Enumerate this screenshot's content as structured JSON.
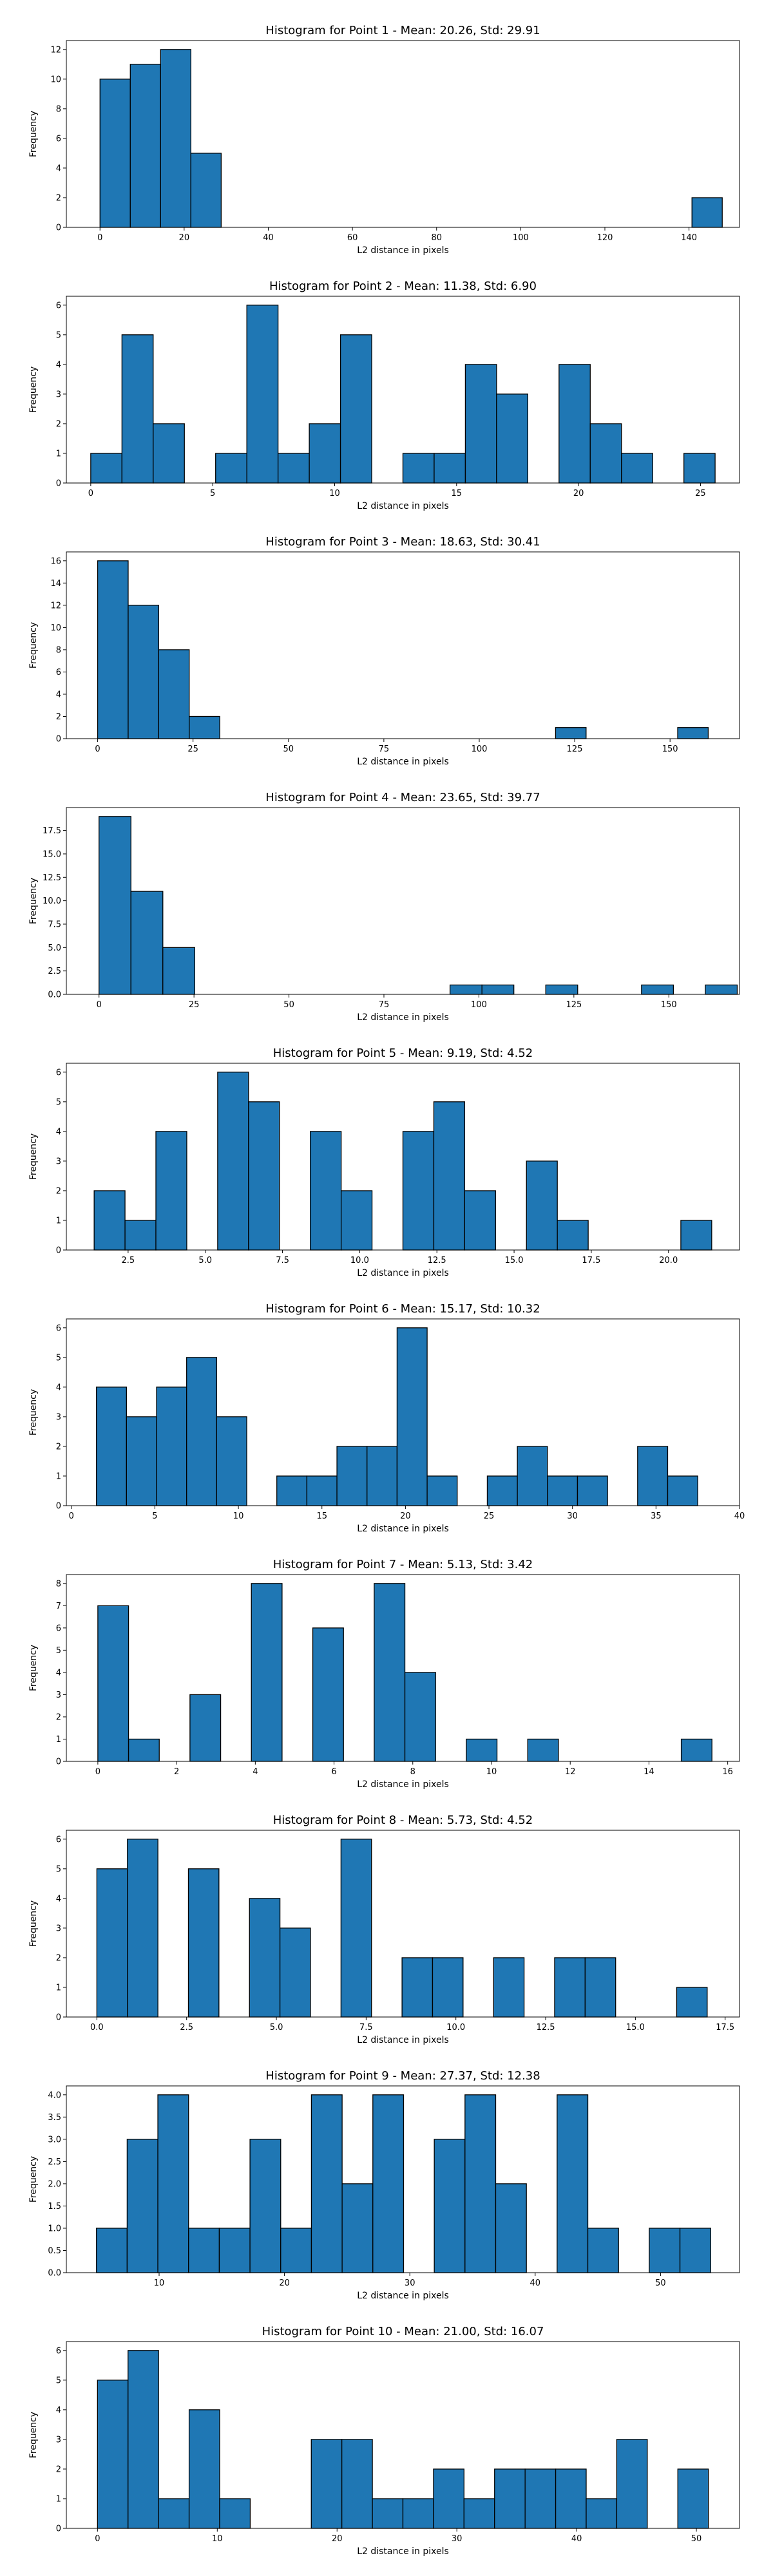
{
  "chart_data": [
    {
      "type": "bar",
      "title": "Histogram for Point 1 - Mean: 20.26, Std: 29.91",
      "xlabel": "L2 distance in pixels",
      "ylabel": "Frequency",
      "bar_color": "#1f77b4",
      "edge_color": "#000000",
      "xlim": [
        -8,
        152
      ],
      "ylim": [
        0,
        12.6
      ],
      "xticks": [
        0,
        20,
        40,
        60,
        80,
        100,
        120,
        140
      ],
      "xtick_labels": [
        "0",
        "20",
        "40",
        "60",
        "80",
        "100",
        "120",
        "140"
      ],
      "yticks": [
        0,
        2,
        4,
        6,
        8,
        10,
        12
      ],
      "ytick_labels": [
        "0",
        "2",
        "4",
        "6",
        "8",
        "10",
        "12"
      ],
      "bins": [
        [
          0.0,
          7.2,
          10
        ],
        [
          7.2,
          14.4,
          11
        ],
        [
          14.4,
          21.6,
          12
        ],
        [
          21.6,
          28.8,
          5
        ],
        [
          140.7,
          147.9,
          2
        ]
      ]
    },
    {
      "type": "bar",
      "title": "Histogram for Point 2 - Mean: 11.38, Std: 6.90",
      "xlabel": "L2 distance in pixels",
      "ylabel": "Frequency",
      "bar_color": "#1f77b4",
      "edge_color": "#000000",
      "xlim": [
        -1.0,
        26.6
      ],
      "ylim": [
        0,
        6.3
      ],
      "xticks": [
        0,
        5,
        10,
        15,
        20,
        25
      ],
      "xtick_labels": [
        "0",
        "5",
        "10",
        "15",
        "20",
        "25"
      ],
      "yticks": [
        0,
        1,
        2,
        3,
        4,
        5,
        6
      ],
      "ytick_labels": [
        "0",
        "1",
        "2",
        "3",
        "4",
        "5",
        "6"
      ],
      "bins": [
        [
          0.0,
          1.28,
          1
        ],
        [
          1.28,
          2.56,
          5
        ],
        [
          2.56,
          3.84,
          2
        ],
        [
          5.12,
          6.4,
          1
        ],
        [
          6.4,
          7.68,
          6
        ],
        [
          7.68,
          8.96,
          1
        ],
        [
          8.96,
          10.24,
          2
        ],
        [
          10.24,
          11.52,
          5
        ],
        [
          12.8,
          14.08,
          1
        ],
        [
          14.08,
          15.36,
          1
        ],
        [
          15.36,
          16.64,
          4
        ],
        [
          16.64,
          17.92,
          3
        ],
        [
          19.2,
          20.48,
          4
        ],
        [
          20.48,
          21.76,
          2
        ],
        [
          21.76,
          23.04,
          1
        ],
        [
          24.32,
          25.6,
          1
        ]
      ]
    },
    {
      "type": "bar",
      "title": "Histogram for Point 3 - Mean: 18.63, Std: 30.41",
      "xlabel": "L2 distance in pixels",
      "ylabel": "Frequency",
      "bar_color": "#1f77b4",
      "edge_color": "#000000",
      "xlim": [
        -8.2,
        168.2
      ],
      "ylim": [
        0,
        16.8
      ],
      "xticks": [
        0,
        25,
        50,
        75,
        100,
        125,
        150
      ],
      "xtick_labels": [
        "0",
        "25",
        "50",
        "75",
        "100",
        "125",
        "150"
      ],
      "yticks": [
        0,
        2,
        4,
        6,
        8,
        10,
        12,
        14,
        16
      ],
      "ytick_labels": [
        "0",
        "2",
        "4",
        "6",
        "8",
        "10",
        "12",
        "14",
        "16"
      ],
      "bins": [
        [
          0.0,
          8.0,
          16
        ],
        [
          8.0,
          16.0,
          12
        ],
        [
          16.0,
          24.0,
          8
        ],
        [
          24.0,
          32.0,
          2
        ],
        [
          120.0,
          128.0,
          1
        ],
        [
          152.0,
          160.0,
          1
        ]
      ]
    },
    {
      "type": "bar",
      "title": "Histogram for Point 4 - Mean: 23.65, Std: 39.77",
      "xlabel": "L2 distance in pixels",
      "ylabel": "Frequency",
      "bar_color": "#1f77b4",
      "edge_color": "#000000",
      "xlim": [
        -8.6,
        168.6
      ],
      "ylim": [
        0,
        19.95
      ],
      "xticks": [
        0,
        25,
        50,
        75,
        100,
        125,
        150
      ],
      "xtick_labels": [
        "0",
        "25",
        "50",
        "75",
        "100",
        "125",
        "150"
      ],
      "yticks": [
        0,
        2.5,
        5,
        7.5,
        10,
        12.5,
        15,
        17.5
      ],
      "ytick_labels": [
        "0.0",
        "2.5",
        "5.0",
        "7.5",
        "10.0",
        "12.5",
        "15.0",
        "17.5"
      ],
      "bins": [
        [
          0.0,
          8.4,
          19
        ],
        [
          8.4,
          16.8,
          11
        ],
        [
          16.8,
          25.2,
          5
        ],
        [
          92.4,
          100.8,
          1
        ],
        [
          100.8,
          109.2,
          1
        ],
        [
          117.6,
          126.0,
          1
        ],
        [
          142.8,
          151.2,
          1
        ],
        [
          159.6,
          168.0,
          1
        ]
      ]
    },
    {
      "type": "bar",
      "title": "Histogram for Point 5 - Mean: 9.19, Std: 4.52",
      "xlabel": "L2 distance in pixels",
      "ylabel": "Frequency",
      "bar_color": "#1f77b4",
      "edge_color": "#000000",
      "xlim": [
        0.5,
        22.3
      ],
      "ylim": [
        0,
        6.3
      ],
      "xticks": [
        2.5,
        5,
        7.5,
        10,
        12.5,
        15,
        17.5,
        20
      ],
      "xtick_labels": [
        "2.5",
        "5.0",
        "7.5",
        "10.0",
        "12.5",
        "15.0",
        "17.5",
        "20.0"
      ],
      "yticks": [
        0,
        1,
        2,
        3,
        4,
        5,
        6
      ],
      "ytick_labels": [
        "0",
        "1",
        "2",
        "3",
        "4",
        "5",
        "6"
      ],
      "bins": [
        [
          1.4,
          2.4,
          2
        ],
        [
          2.4,
          3.4,
          1
        ],
        [
          3.4,
          4.4,
          4
        ],
        [
          5.4,
          6.4,
          6
        ],
        [
          6.4,
          7.4,
          5
        ],
        [
          8.4,
          9.4,
          4
        ],
        [
          9.4,
          10.4,
          2
        ],
        [
          11.4,
          12.4,
          4
        ],
        [
          12.4,
          13.4,
          5
        ],
        [
          13.4,
          14.4,
          2
        ],
        [
          15.4,
          16.4,
          3
        ],
        [
          16.4,
          17.4,
          1
        ],
        [
          20.4,
          21.4,
          1
        ]
      ]
    },
    {
      "type": "bar",
      "title": "Histogram for Point 6 - Mean: 15.17, Std: 10.32",
      "xlabel": "L2 distance in pixels",
      "ylabel": "Frequency",
      "bar_color": "#1f77b4",
      "edge_color": "#000000",
      "xlim": [
        -0.3,
        40.0
      ],
      "ylim": [
        0,
        6.3
      ],
      "xticks": [
        0,
        5,
        10,
        15,
        20,
        25,
        30,
        35,
        40
      ],
      "xtick_labels": [
        "0",
        "5",
        "10",
        "15",
        "20",
        "25",
        "30",
        "35",
        "40"
      ],
      "yticks": [
        0,
        1,
        2,
        3,
        4,
        5,
        6
      ],
      "ytick_labels": [
        "0",
        "1",
        "2",
        "3",
        "4",
        "5",
        "6"
      ],
      "bins": [
        [
          1.5,
          3.3,
          4
        ],
        [
          3.3,
          5.1,
          3
        ],
        [
          5.1,
          6.9,
          4
        ],
        [
          6.9,
          8.7,
          5
        ],
        [
          8.7,
          10.5,
          3
        ],
        [
          12.3,
          14.1,
          1
        ],
        [
          14.1,
          15.9,
          1
        ],
        [
          15.9,
          17.7,
          2
        ],
        [
          17.7,
          19.5,
          2
        ],
        [
          19.5,
          21.3,
          6
        ],
        [
          21.3,
          23.1,
          1
        ],
        [
          24.9,
          26.7,
          1
        ],
        [
          26.7,
          28.5,
          2
        ],
        [
          28.5,
          30.3,
          1
        ],
        [
          30.3,
          32.1,
          1
        ],
        [
          33.9,
          35.7,
          2
        ],
        [
          35.7,
          37.5,
          1
        ]
      ]
    },
    {
      "type": "bar",
      "title": "Histogram for Point 7 - Mean: 5.13, Std: 3.42",
      "xlabel": "L2 distance in pixels",
      "ylabel": "Frequency",
      "bar_color": "#1f77b4",
      "edge_color": "#000000",
      "xlim": [
        -0.8,
        16.3
      ],
      "ylim": [
        0,
        8.4
      ],
      "xticks": [
        0,
        2,
        4,
        6,
        8,
        10,
        12,
        14,
        16
      ],
      "xtick_labels": [
        "0",
        "2",
        "4",
        "6",
        "8",
        "10",
        "12",
        "14",
        "16"
      ],
      "yticks": [
        0,
        1,
        2,
        3,
        4,
        5,
        6,
        7,
        8
      ],
      "ytick_labels": [
        "0",
        "1",
        "2",
        "3",
        "4",
        "5",
        "6",
        "7",
        "8"
      ],
      "bins": [
        [
          0.0,
          0.78,
          7
        ],
        [
          0.78,
          1.56,
          1
        ],
        [
          2.34,
          3.12,
          3
        ],
        [
          3.9,
          4.68,
          8
        ],
        [
          5.46,
          6.24,
          6
        ],
        [
          7.02,
          7.8,
          8
        ],
        [
          7.8,
          8.58,
          4
        ],
        [
          9.36,
          10.14,
          1
        ],
        [
          10.92,
          11.7,
          1
        ],
        [
          14.82,
          15.6,
          1
        ]
      ]
    },
    {
      "type": "bar",
      "title": "Histogram for Point 8 - Mean: 5.73, Std: 4.52",
      "xlabel": "L2 distance in pixels",
      "ylabel": "Frequency",
      "bar_color": "#1f77b4",
      "edge_color": "#000000",
      "xlim": [
        -0.85,
        17.9
      ],
      "ylim": [
        0,
        6.3
      ],
      "xticks": [
        0,
        2.5,
        5,
        7.5,
        10,
        12.5,
        15,
        17.5
      ],
      "xtick_labels": [
        "0.0",
        "2.5",
        "5.0",
        "7.5",
        "10.0",
        "12.5",
        "15.0",
        "17.5"
      ],
      "yticks": [
        0,
        1,
        2,
        3,
        4,
        5,
        6
      ],
      "ytick_labels": [
        "0",
        "1",
        "2",
        "3",
        "4",
        "5",
        "6"
      ],
      "bins": [
        [
          0.0,
          0.85,
          5
        ],
        [
          0.85,
          1.7,
          6
        ],
        [
          2.55,
          3.4,
          5
        ],
        [
          4.25,
          5.1,
          4
        ],
        [
          5.1,
          5.95,
          3
        ],
        [
          6.8,
          7.65,
          6
        ],
        [
          8.5,
          9.35,
          2
        ],
        [
          9.35,
          10.2,
          2
        ],
        [
          11.05,
          11.9,
          2
        ],
        [
          12.75,
          13.6,
          2
        ],
        [
          13.6,
          14.45,
          2
        ],
        [
          16.15,
          17.0,
          1
        ]
      ]
    },
    {
      "type": "bar",
      "title": "Histogram for Point 9 - Mean: 27.37, Std: 12.38",
      "xlabel": "L2 distance in pixels",
      "ylabel": "Frequency",
      "bar_color": "#1f77b4",
      "edge_color": "#000000",
      "xlim": [
        2.6,
        56.3
      ],
      "ylim": [
        0,
        4.2
      ],
      "xticks": [
        10,
        20,
        30,
        40,
        50
      ],
      "xtick_labels": [
        "10",
        "20",
        "30",
        "40",
        "50"
      ],
      "yticks": [
        0,
        0.5,
        1,
        1.5,
        2,
        2.5,
        3,
        3.5,
        4
      ],
      "ytick_labels": [
        "0.0",
        "0.5",
        "1.0",
        "1.5",
        "2.0",
        "2.5",
        "3.0",
        "3.5",
        "4.0"
      ],
      "bins": [
        [
          5.0,
          7.45,
          1
        ],
        [
          7.45,
          9.9,
          3
        ],
        [
          9.9,
          12.35,
          4
        ],
        [
          12.35,
          14.8,
          1
        ],
        [
          14.8,
          17.25,
          1
        ],
        [
          17.25,
          19.7,
          3
        ],
        [
          19.7,
          22.15,
          1
        ],
        [
          22.15,
          24.6,
          4
        ],
        [
          24.6,
          27.05,
          2
        ],
        [
          27.05,
          29.5,
          4
        ],
        [
          31.95,
          34.4,
          3
        ],
        [
          34.4,
          36.85,
          4
        ],
        [
          36.85,
          39.3,
          2
        ],
        [
          41.75,
          44.2,
          4
        ],
        [
          44.2,
          46.65,
          1
        ],
        [
          49.1,
          51.55,
          1
        ],
        [
          51.55,
          54.0,
          1
        ]
      ]
    },
    {
      "type": "bar",
      "title": "Histogram for Point 10 - Mean: 21.00, Std: 16.07",
      "xlabel": "L2 distance in pixels",
      "ylabel": "Frequency",
      "bar_color": "#1f77b4",
      "edge_color": "#000000",
      "xlim": [
        -2.6,
        53.6
      ],
      "ylim": [
        0,
        6.3
      ],
      "xticks": [
        0,
        10,
        20,
        30,
        40,
        50
      ],
      "xtick_labels": [
        "0",
        "10",
        "20",
        "30",
        "40",
        "50"
      ],
      "yticks": [
        0,
        1,
        2,
        3,
        4,
        5,
        6
      ],
      "ytick_labels": [
        "0",
        "1",
        "2",
        "3",
        "4",
        "5",
        "6"
      ],
      "bins": [
        [
          0.0,
          2.55,
          5
        ],
        [
          2.55,
          5.1,
          6
        ],
        [
          5.1,
          7.65,
          1
        ],
        [
          7.65,
          10.2,
          4
        ],
        [
          10.2,
          12.75,
          1
        ],
        [
          17.85,
          20.4,
          3
        ],
        [
          20.4,
          22.95,
          3
        ],
        [
          22.95,
          25.5,
          1
        ],
        [
          25.5,
          28.05,
          1
        ],
        [
          28.05,
          30.6,
          2
        ],
        [
          30.6,
          33.15,
          1
        ],
        [
          33.15,
          35.7,
          2
        ],
        [
          35.7,
          38.25,
          2
        ],
        [
          38.25,
          40.8,
          2
        ],
        [
          40.8,
          43.35,
          1
        ],
        [
          43.35,
          45.9,
          3
        ],
        [
          48.45,
          51.0,
          2
        ]
      ]
    }
  ]
}
